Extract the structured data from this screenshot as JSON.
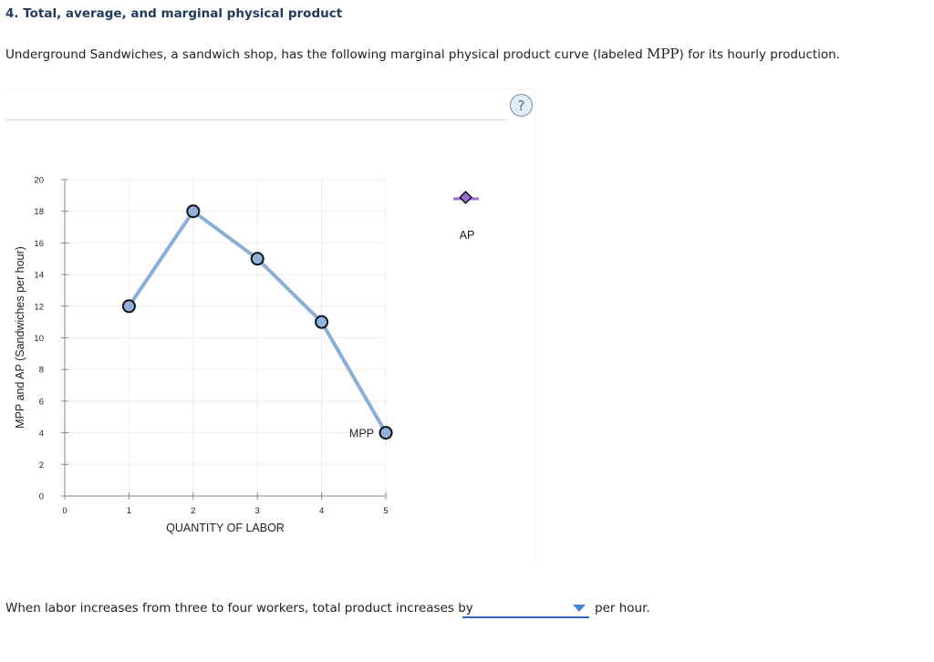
{
  "question": {
    "title": "4. Total, average, and marginal physical product",
    "intro_before": "Underground Sandwiches, a sandwich shop, has the following marginal physical product curve (labeled ",
    "intro_term": "MPP",
    "intro_after": ") for its hourly production."
  },
  "help": {
    "label": "?"
  },
  "legend": {
    "ap_label": "AP"
  },
  "chart_data": {
    "type": "line",
    "xlabel": "QUANTITY OF LABOR",
    "ylabel": "MPP and AP (Sandwiches per hour)",
    "xlim": [
      0,
      5
    ],
    "ylim": [
      0,
      20
    ],
    "x_ticks": [
      0,
      1,
      2,
      3,
      4,
      5
    ],
    "y_ticks": [
      0,
      2,
      4,
      6,
      8,
      10,
      12,
      14,
      16,
      18,
      20
    ],
    "grid": true,
    "series": [
      {
        "name": "MPP",
        "x": [
          1,
          2,
          3,
          4,
          5
        ],
        "y": [
          12,
          18,
          15,
          11,
          4
        ],
        "color": "#8aaed6",
        "marker_fill": "#8fb1dc"
      }
    ],
    "legend_items": [
      {
        "name": "AP",
        "color": "#a06ad8",
        "marker_fill": "#9b6bd3"
      }
    ]
  },
  "answer": {
    "prompt": "When labor increases from three to four workers, total product increases by",
    "selected": "",
    "suffix": "per hour."
  }
}
